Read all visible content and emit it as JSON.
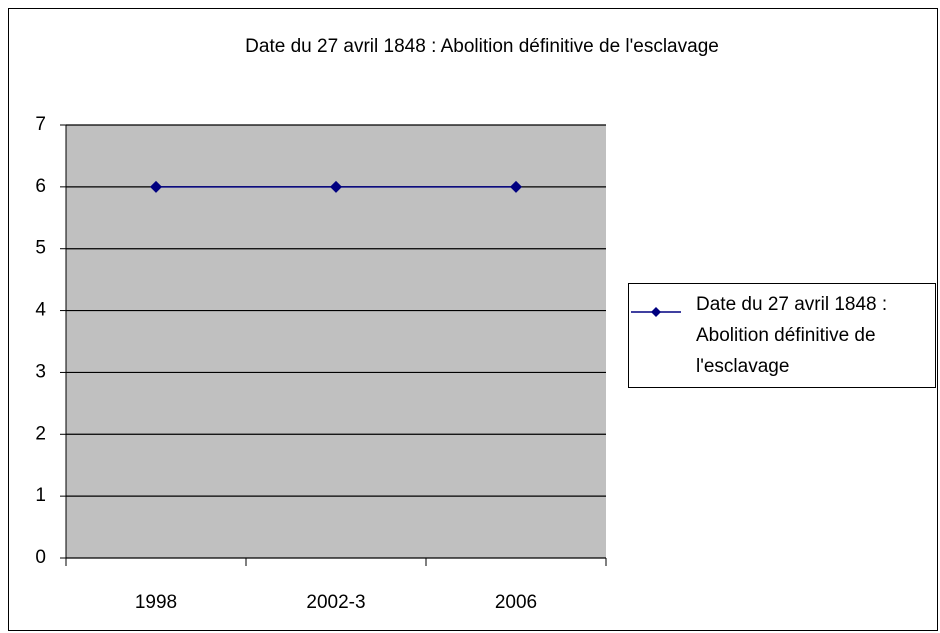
{
  "chart_data": {
    "type": "line",
    "title": "Date du 27 avril 1848 : Abolition définitive de l'esclavage",
    "categories": [
      "1998",
      "2002-3",
      "2006"
    ],
    "series": [
      {
        "name": "Date du 27 avril 1848 : Abolition définitive de l'esclavage",
        "color": "#000080",
        "values": [
          6,
          6,
          6
        ]
      }
    ],
    "ylim": [
      0,
      7
    ],
    "yticks": [
      0,
      1,
      2,
      3,
      4,
      5,
      6,
      7
    ],
    "grid": true,
    "legend": "right"
  }
}
